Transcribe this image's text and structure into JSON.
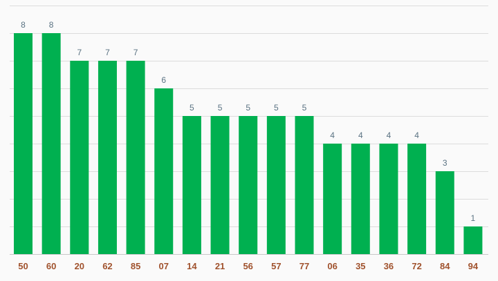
{
  "chart_data": {
    "type": "bar",
    "categories": [
      "50",
      "60",
      "20",
      "62",
      "85",
      "07",
      "14",
      "21",
      "56",
      "57",
      "77",
      "06",
      "35",
      "36",
      "72",
      "84",
      "94"
    ],
    "values": [
      8,
      8,
      7,
      7,
      7,
      6,
      5,
      5,
      5,
      5,
      5,
      4,
      4,
      4,
      4,
      3,
      1
    ],
    "title": "",
    "xlabel": "",
    "ylabel": "",
    "ylim": [
      0,
      9
    ],
    "grid": true,
    "legend": "none",
    "colors": {
      "bar": "#00b050",
      "value_label": "#5a7282",
      "tick_label": "#a0522d",
      "grid": "#dcdcdc",
      "background": "#fafafa"
    }
  }
}
